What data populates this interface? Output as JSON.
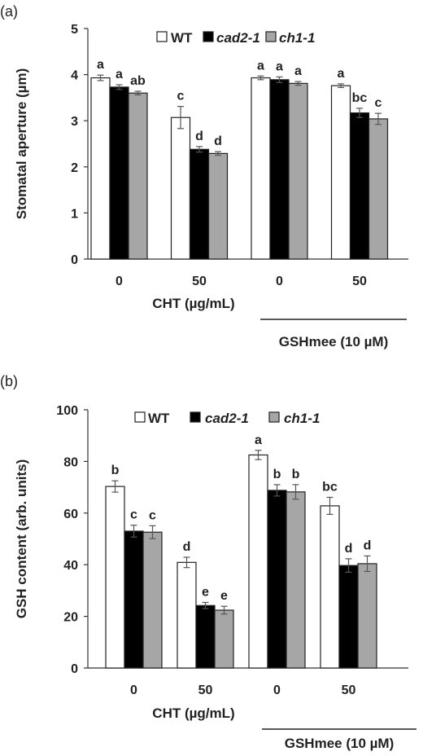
{
  "chart_data": [
    {
      "panel_label": "(a)",
      "type": "bar",
      "categories": [
        "0",
        "50",
        "0",
        "50"
      ],
      "xlabel": "CHT (µg/mL)",
      "group_label": "GSHmee (10 µM)",
      "ylabel": "Stomatal aperture (µm)",
      "ylim": [
        0,
        5
      ],
      "yticks": [
        "0",
        "1",
        "2",
        "3",
        "4",
        "5"
      ],
      "legend_position": "top-center",
      "grid": false,
      "series": [
        {
          "name": "WT",
          "fill": "#ffffff",
          "values": [
            3.93,
            3.07,
            3.93,
            3.76
          ],
          "errors": [
            0.06,
            0.24,
            0.04,
            0.04
          ],
          "letters": [
            "a",
            "c",
            "a",
            "a"
          ]
        },
        {
          "name": "cad2-1",
          "fill": "#000000",
          "values": [
            3.73,
            2.38,
            3.89,
            3.17
          ],
          "errors": [
            0.05,
            0.06,
            0.06,
            0.1
          ],
          "letters": [
            "a",
            "d",
            "a",
            "bc"
          ]
        },
        {
          "name": "ch1-1",
          "fill": "#a6a6a6",
          "values": [
            3.6,
            2.29,
            3.81,
            3.04
          ],
          "errors": [
            0.04,
            0.04,
            0.04,
            0.12
          ],
          "letters": [
            "ab",
            "d",
            "a",
            "c"
          ]
        }
      ]
    },
    {
      "panel_label": "(b)",
      "type": "bar",
      "categories": [
        "0",
        "50",
        "0",
        "50"
      ],
      "xlabel": "CHT (µg/mL)",
      "group_label": "GSHmee (10 µM)",
      "ylabel": "GSH content (arb. units)",
      "ylim": [
        0,
        100
      ],
      "yticks": [
        "0",
        "20",
        "40",
        "60",
        "80",
        "100"
      ],
      "legend_position": "top-center",
      "grid": false,
      "series": [
        {
          "name": "WT",
          "fill": "#ffffff",
          "values": [
            70.3,
            40.9,
            82.5,
            62.8
          ],
          "errors": [
            2.2,
            2.0,
            1.8,
            3.3
          ],
          "letters": [
            "b",
            "d",
            "a",
            "bc"
          ]
        },
        {
          "name": "cad2-1",
          "fill": "#000000",
          "values": [
            53.0,
            24.2,
            68.8,
            39.7
          ],
          "errors": [
            2.3,
            1.2,
            2.2,
            2.6
          ],
          "letters": [
            "c",
            "e",
            "b",
            "d"
          ]
        },
        {
          "name": "ch1-1",
          "fill": "#a6a6a6",
          "values": [
            52.6,
            22.4,
            68.2,
            40.4
          ],
          "errors": [
            2.5,
            1.5,
            2.8,
            3.0
          ],
          "letters": [
            "c",
            "e",
            "b",
            "d"
          ]
        }
      ]
    }
  ]
}
